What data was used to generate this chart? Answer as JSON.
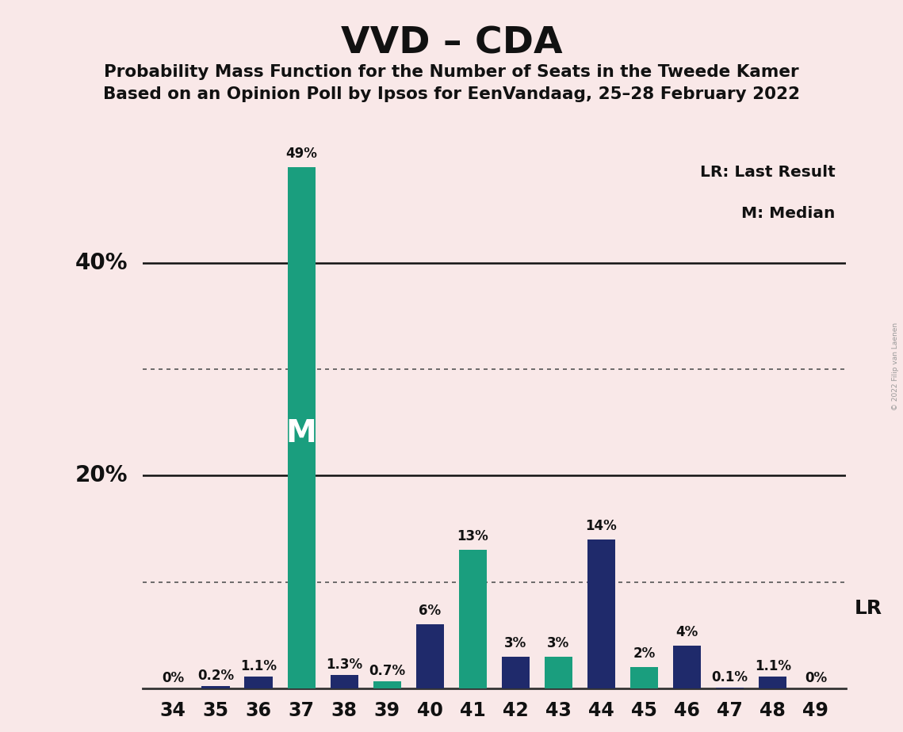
{
  "title": "VVD – CDA",
  "subtitle1": "Probability Mass Function for the Number of Seats in the Tweede Kamer",
  "subtitle2": "Based on an Opinion Poll by Ipsos for EenVandaag, 25–28 February 2022",
  "legend_lr": "LR: Last Result",
  "legend_m": "M: Median",
  "watermark": "© 2022 Filip van Laenen",
  "seats": [
    34,
    35,
    36,
    37,
    38,
    39,
    40,
    41,
    42,
    43,
    44,
    45,
    46,
    47,
    48,
    49
  ],
  "bar_values": [
    0.0,
    0.2,
    1.1,
    49.0,
    1.3,
    0.7,
    6.0,
    13.0,
    3.0,
    3.0,
    14.0,
    2.0,
    4.0,
    0.1,
    1.1,
    0.0
  ],
  "bar_colors": [
    "#1f2a6b",
    "#1f2a6b",
    "#1f2a6b",
    "#1a9e7e",
    "#1f2a6b",
    "#1a9e7e",
    "#1f2a6b",
    "#1a9e7e",
    "#1f2a6b",
    "#1a9e7e",
    "#1f2a6b",
    "#1a9e7e",
    "#1f2a6b",
    "#1f2a6b",
    "#1f2a6b",
    "#1f2a6b"
  ],
  "bar_labels": [
    "0%",
    "0.2%",
    "1.1%",
    "49%",
    "1.3%",
    "0.7%",
    "6%",
    "13%",
    "3%",
    "3%",
    "14%",
    "2%",
    "4%",
    "0.1%",
    "1.1%",
    "0%"
  ],
  "median_seat": 37,
  "lr_seat": 46,
  "pmf_color": "#1a9e7e",
  "lr_color": "#1f2a6b",
  "bg_color": "#f9e8e8",
  "ylim": [
    0,
    55
  ],
  "dotted_lines": [
    10,
    30
  ],
  "solid_lines": [
    20,
    40
  ]
}
